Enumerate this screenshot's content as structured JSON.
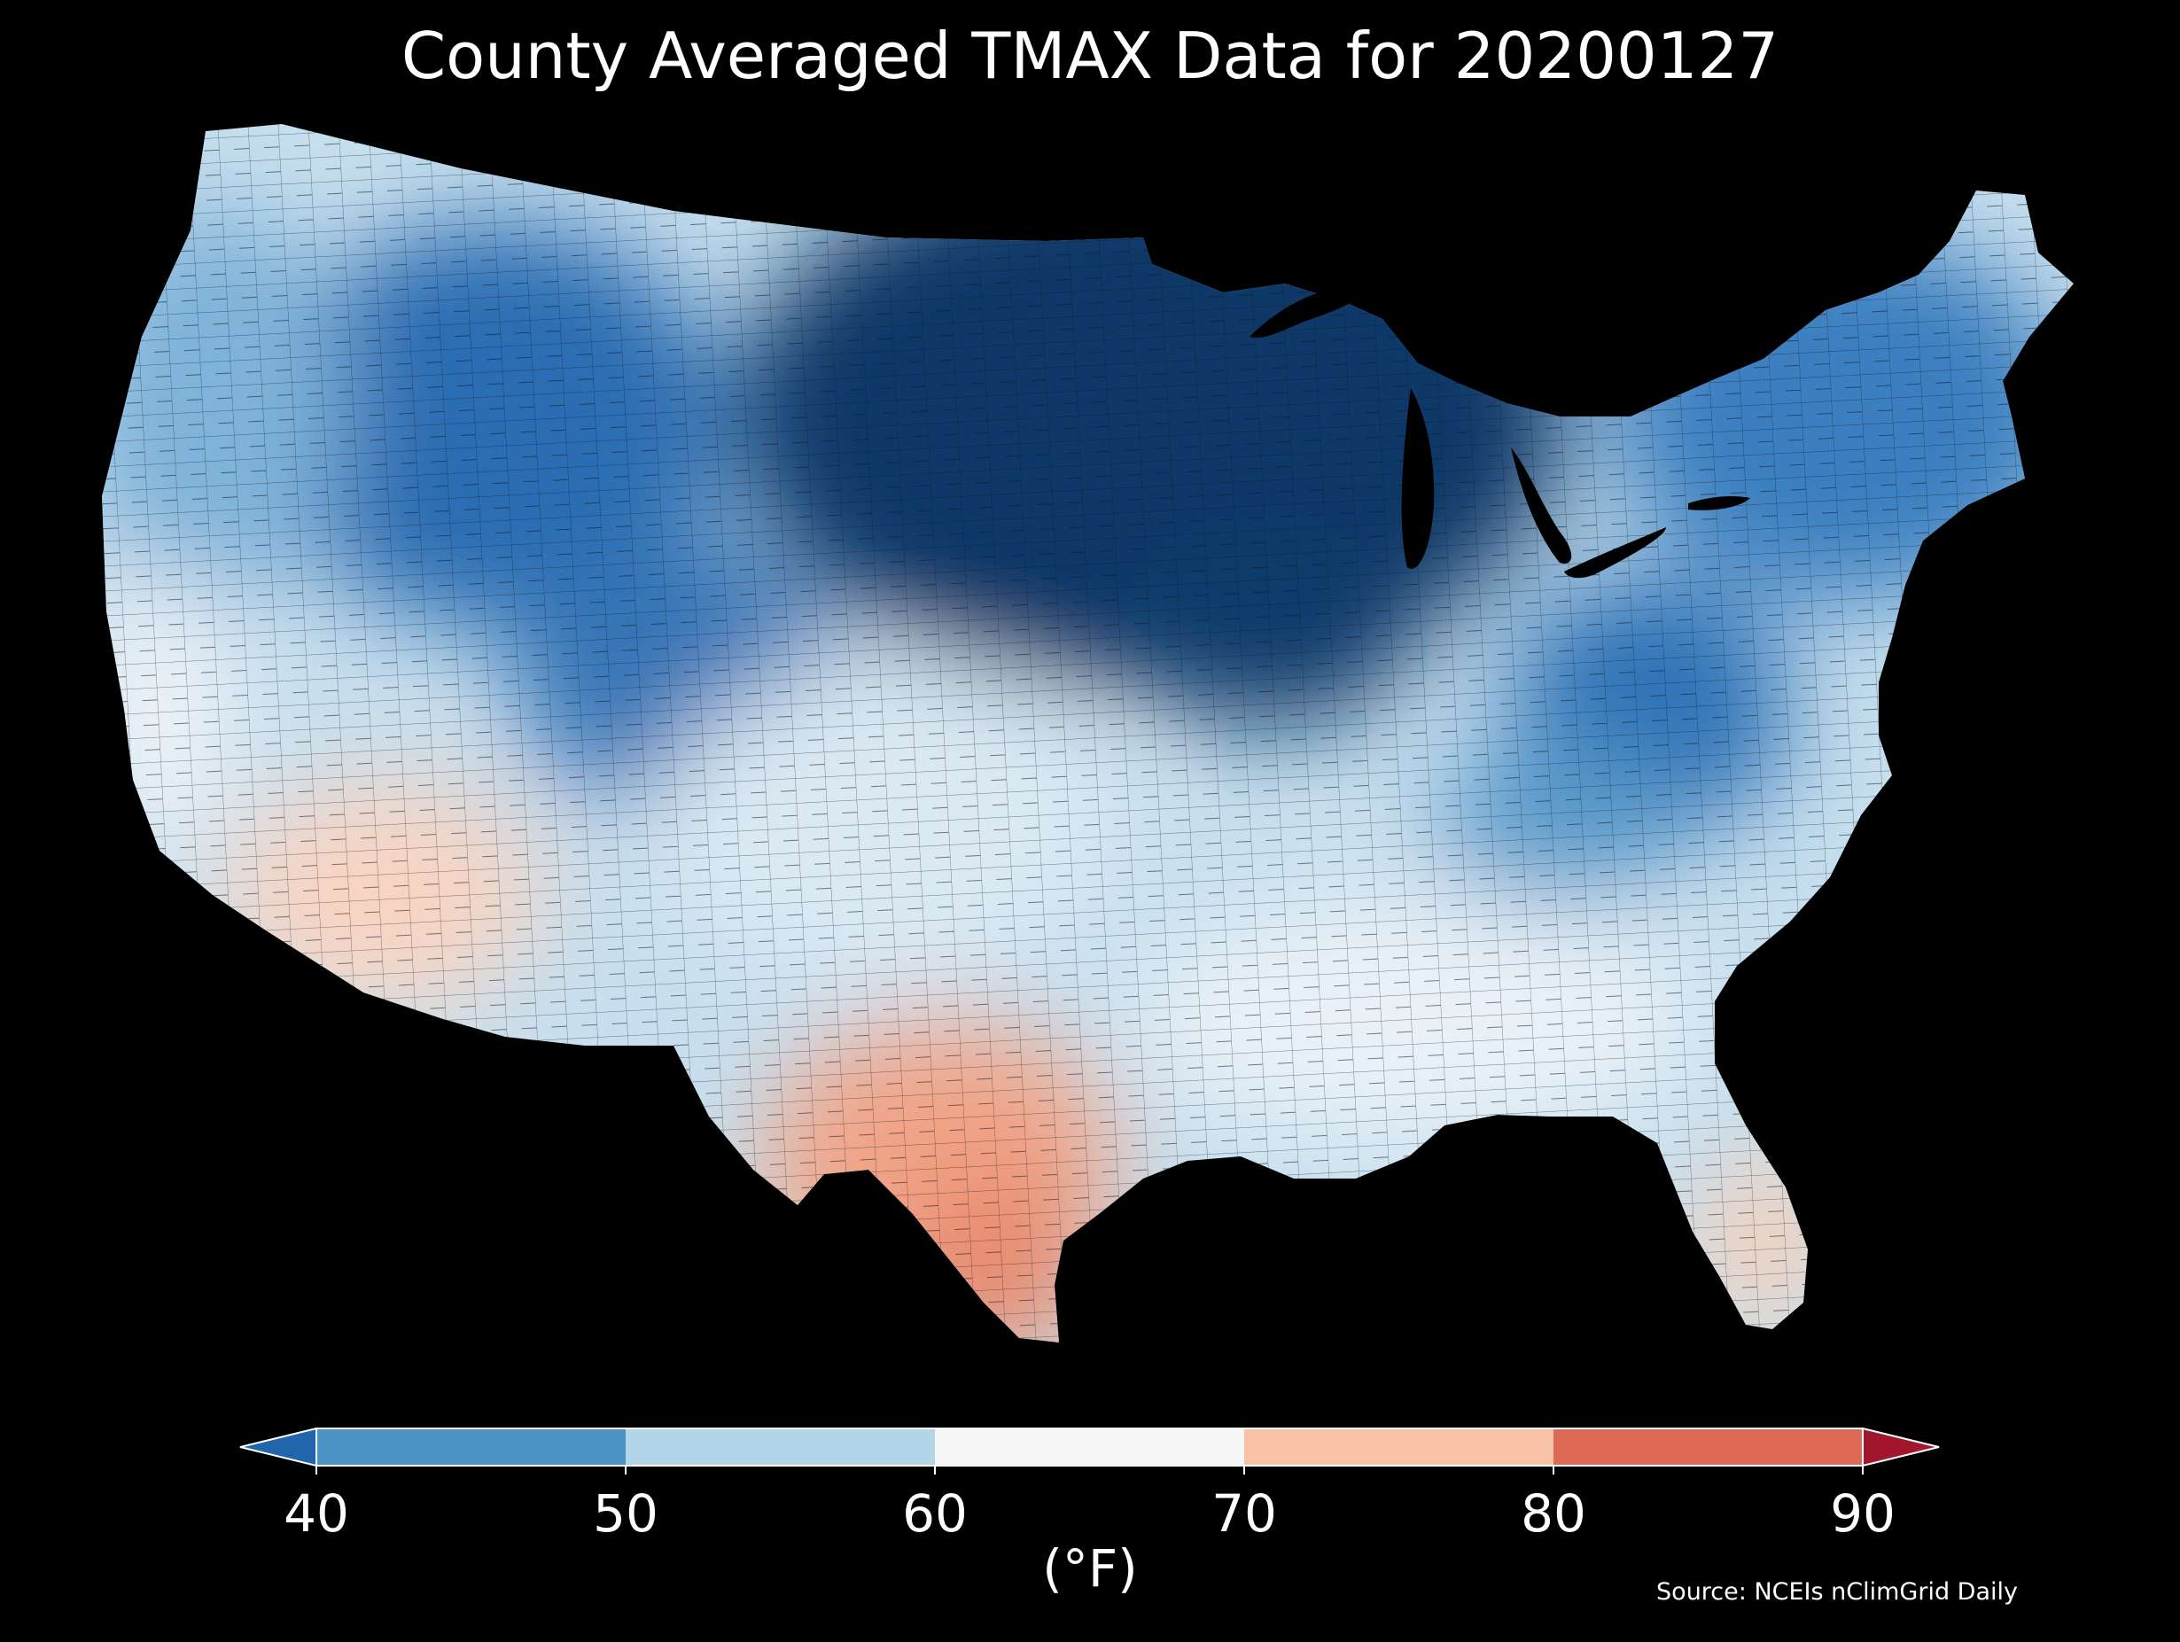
{
  "title": "County Averaged TMAX Data for 20200127",
  "colorbar": {
    "unit_label": "(°F)",
    "ticks": [
      "40",
      "50",
      "60",
      "70",
      "80",
      "90"
    ],
    "bins": [
      {
        "from": 40,
        "to": 50,
        "color": "#4a95c6"
      },
      {
        "from": 50,
        "to": 60,
        "color": "#b3d5e8"
      },
      {
        "from": 60,
        "to": 70,
        "color": "#f7f7f7"
      },
      {
        "from": 70,
        "to": 80,
        "color": "#f8c2a6"
      },
      {
        "from": 80,
        "to": 90,
        "color": "#dc6a55"
      }
    ],
    "under_color": "#2166ac",
    "over_color": "#a3172e",
    "extend": "both"
  },
  "source": "Source: NCEIs nClimGrid Daily",
  "map": {
    "background": "#000000",
    "region": "contiguous United States",
    "unit": "county",
    "variable": "TMAX",
    "regional_pattern": [
      {
        "region": "northern plains and upper midwest",
        "color": "#0b3768"
      },
      {
        "region": "northern rockies",
        "color": "#2b6db2"
      },
      {
        "region": "northeast",
        "color": "#3b7fc0"
      },
      {
        "region": "pacific northwest",
        "color": "#7fb3d9"
      },
      {
        "region": "central plains",
        "color": "#dbe9f3"
      },
      {
        "region": "southeast",
        "color": "#e9f1f7"
      },
      {
        "region": "desert southwest",
        "color": "#f8d4c2"
      },
      {
        "region": "south texas",
        "color": "#e98a6d"
      },
      {
        "region": "south florida",
        "color": "#f8d0b8"
      }
    ]
  }
}
